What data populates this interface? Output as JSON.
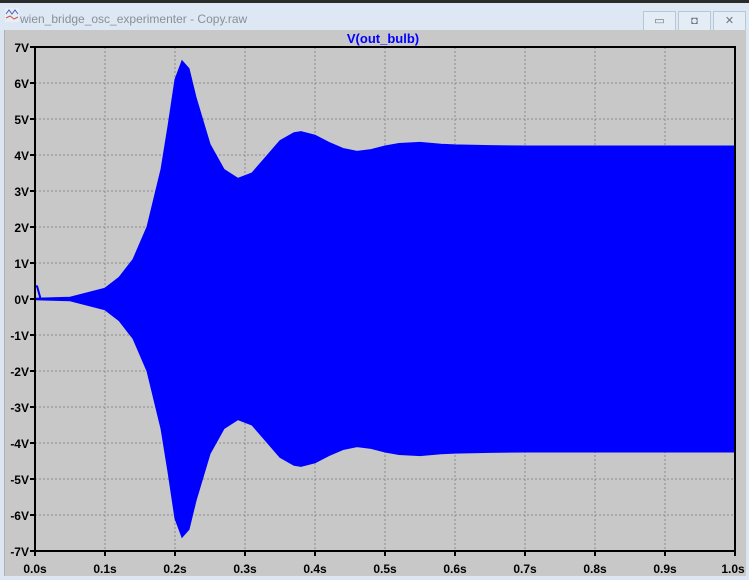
{
  "window": {
    "title": "wien_bridge_osc_experimenter - Copy.raw",
    "minimize": "▭",
    "maximize": "◘",
    "close": "✕"
  },
  "chart_data": {
    "type": "line",
    "title": "V(out_bulb)",
    "series_color": "#0000ff",
    "background": "#c8c8c8",
    "grid": true,
    "xlim": [
      0,
      1.0
    ],
    "ylim": [
      -7,
      7
    ],
    "x_ticks": [
      "0.0s",
      "0.1s",
      "0.2s",
      "0.3s",
      "0.4s",
      "0.5s",
      "0.6s",
      "0.7s",
      "0.8s",
      "0.9s",
      "1.0s"
    ],
    "y_ticks": [
      "7V",
      "6V",
      "5V",
      "4V",
      "3V",
      "2V",
      "1V",
      "0V",
      "-1V",
      "-2V",
      "-3V",
      "-4V",
      "-5V",
      "-6V",
      "-7V"
    ],
    "envelope": {
      "t": [
        0.0,
        0.05,
        0.1,
        0.12,
        0.14,
        0.16,
        0.18,
        0.19,
        0.2,
        0.21,
        0.22,
        0.23,
        0.25,
        0.27,
        0.29,
        0.31,
        0.33,
        0.35,
        0.37,
        0.38,
        0.4,
        0.42,
        0.44,
        0.46,
        0.48,
        0.5,
        0.52,
        0.55,
        0.58,
        0.6,
        0.65,
        0.7,
        0.8,
        0.9,
        1.0
      ],
      "amplitude": [
        0.02,
        0.05,
        0.3,
        0.6,
        1.1,
        2.0,
        3.6,
        4.8,
        6.1,
        6.62,
        6.4,
        5.6,
        4.3,
        3.6,
        3.35,
        3.5,
        3.95,
        4.4,
        4.62,
        4.65,
        4.55,
        4.35,
        4.18,
        4.1,
        4.15,
        4.25,
        4.32,
        4.35,
        4.3,
        4.28,
        4.26,
        4.25,
        4.25,
        4.25,
        4.25
      ]
    },
    "initial_spike_v": 0.35
  }
}
